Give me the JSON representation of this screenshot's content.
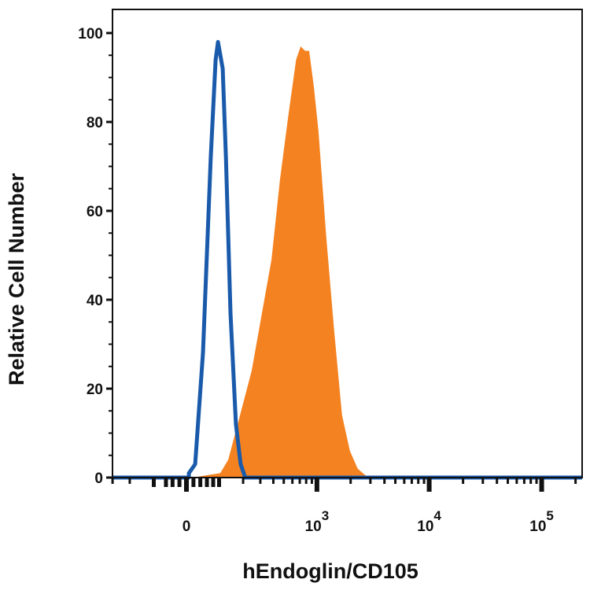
{
  "chart_data": {
    "type": "area",
    "title": "",
    "xlabel": "hEndoglin/CD105",
    "ylabel": "Relative Cell Number",
    "x_scale": "biexponential",
    "xlim": [
      -300,
      230000
    ],
    "ylim": [
      0,
      100
    ],
    "x_ticks": [
      {
        "value": 0,
        "base": "0",
        "exp": ""
      },
      {
        "value": 1000,
        "base": "10",
        "exp": "3"
      },
      {
        "value": 10000,
        "base": "10",
        "exp": "4"
      },
      {
        "value": 100000,
        "base": "10",
        "exp": "5"
      }
    ],
    "y_ticks": [
      0,
      20,
      40,
      60,
      80,
      100
    ],
    "grid": false,
    "series": [
      {
        "style": "filled",
        "color": "#f58220",
        "x": [
          18,
          104,
          134,
          185,
          246,
          384,
          461,
          548,
          649,
          714,
          785,
          852,
          938,
          1032,
          1213,
          1426,
          1676,
          1970,
          2314,
          2857
        ],
        "y": [
          0,
          1,
          4,
          14,
          24,
          49,
          67,
          81,
          94,
          97,
          96,
          96,
          88,
          78,
          54,
          33,
          14,
          6,
          2,
          0
        ]
      },
      {
        "style": "outline",
        "color": "#1a5aab",
        "x": [
          7,
          25,
          48,
          72,
          88,
          96,
          113,
          125,
          143,
          166,
          188,
          211
        ],
        "y": [
          1,
          3,
          28,
          72,
          94,
          98,
          92,
          72,
          37,
          12,
          3,
          0
        ]
      }
    ]
  }
}
